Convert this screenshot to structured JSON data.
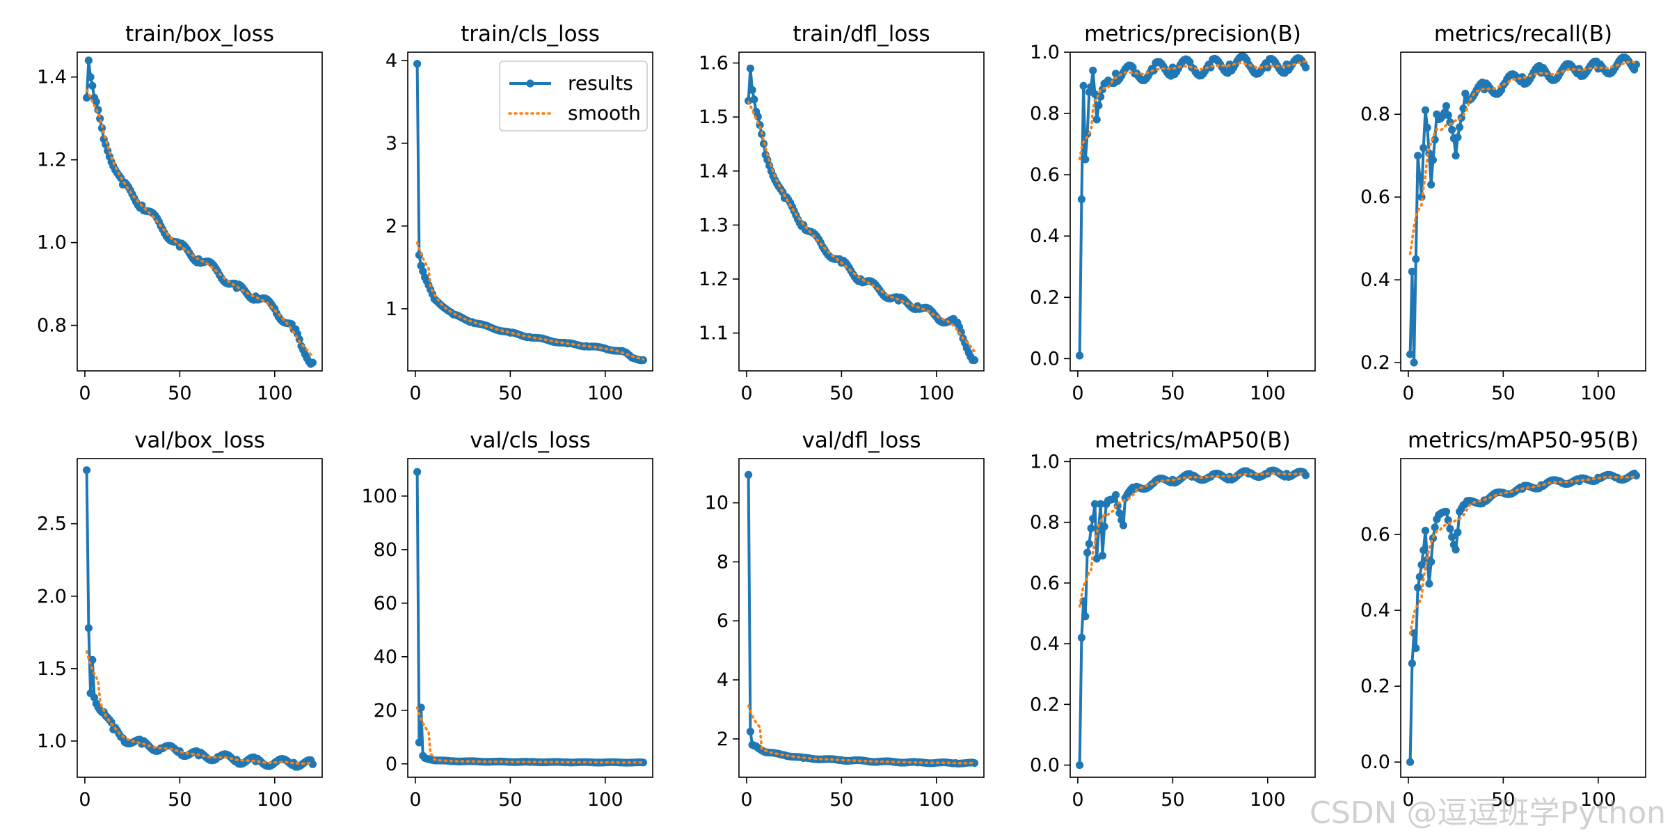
{
  "figure": {
    "colors": {
      "results": "#1f77b4",
      "smooth": "#ff7f0e",
      "axis": "#000000",
      "background": "#ffffff"
    },
    "legend": {
      "results_label": "results",
      "smooth_label": "smooth",
      "placement": "top-right",
      "panel_index": 1
    },
    "watermark": "CSDN @逗逗班学Python"
  },
  "chart_data": [
    {
      "type": "line",
      "title": "train/box_loss",
      "xlabel": "",
      "ylabel": "",
      "xlim": [
        -4,
        125
      ],
      "ylim": [
        0.69,
        1.46
      ],
      "xticks": [
        0,
        50,
        100
      ],
      "yticks": [
        0.8,
        1.0,
        1.2,
        1.4
      ],
      "legend": false,
      "grid": false,
      "anchors": [
        [
          1,
          1.35
        ],
        [
          2,
          1.44
        ],
        [
          3,
          1.4
        ],
        [
          5,
          1.35
        ],
        [
          10,
          1.25
        ],
        [
          20,
          1.14
        ],
        [
          30,
          1.09
        ],
        [
          40,
          1.04
        ],
        [
          50,
          0.99
        ],
        [
          60,
          0.96
        ],
        [
          70,
          0.93
        ],
        [
          80,
          0.89
        ],
        [
          90,
          0.87
        ],
        [
          100,
          0.84
        ],
        [
          110,
          0.79
        ],
        [
          114,
          0.75
        ],
        [
          120,
          0.71
        ]
      ],
      "noise": 0.012
    },
    {
      "type": "line",
      "title": "train/cls_loss",
      "xlabel": "",
      "ylabel": "",
      "xlim": [
        -4,
        125
      ],
      "ylim": [
        0.25,
        4.1
      ],
      "xticks": [
        0,
        50,
        100
      ],
      "yticks": [
        1,
        2,
        3,
        4
      ],
      "legend": true,
      "grid": false,
      "anchors": [
        [
          1,
          3.96
        ],
        [
          2,
          1.65
        ],
        [
          3,
          1.52
        ],
        [
          5,
          1.38
        ],
        [
          10,
          1.12
        ],
        [
          20,
          0.93
        ],
        [
          30,
          0.84
        ],
        [
          40,
          0.77
        ],
        [
          50,
          0.71
        ],
        [
          60,
          0.66
        ],
        [
          70,
          0.62
        ],
        [
          80,
          0.58
        ],
        [
          90,
          0.55
        ],
        [
          100,
          0.52
        ],
        [
          110,
          0.48
        ],
        [
          114,
          0.41
        ],
        [
          120,
          0.38
        ]
      ],
      "noise": 0.01
    },
    {
      "type": "line",
      "title": "train/dfl_loss",
      "xlabel": "",
      "ylabel": "",
      "xlim": [
        -4,
        125
      ],
      "ylim": [
        1.03,
        1.62
      ],
      "xticks": [
        0,
        50,
        100
      ],
      "yticks": [
        1.1,
        1.2,
        1.3,
        1.4,
        1.5,
        1.6
      ],
      "legend": false,
      "grid": false,
      "anchors": [
        [
          1,
          1.53
        ],
        [
          2,
          1.59
        ],
        [
          3,
          1.55
        ],
        [
          5,
          1.51
        ],
        [
          10,
          1.43
        ],
        [
          20,
          1.35
        ],
        [
          30,
          1.3
        ],
        [
          40,
          1.26
        ],
        [
          50,
          1.23
        ],
        [
          60,
          1.2
        ],
        [
          70,
          1.18
        ],
        [
          80,
          1.16
        ],
        [
          90,
          1.15
        ],
        [
          100,
          1.13
        ],
        [
          110,
          1.12
        ],
        [
          114,
          1.09
        ],
        [
          120,
          1.05
        ]
      ],
      "noise": 0.008
    },
    {
      "type": "line",
      "title": "metrics/precision(B)",
      "xlabel": "",
      "ylabel": "",
      "xlim": [
        -4,
        125
      ],
      "ylim": [
        -0.04,
        1.0
      ],
      "xticks": [
        0,
        50,
        100
      ],
      "yticks": [
        0.0,
        0.2,
        0.4,
        0.6,
        0.8,
        1.0
      ],
      "legend": false,
      "grid": false,
      "anchors": [
        [
          1,
          0.01
        ],
        [
          2,
          0.52
        ],
        [
          3,
          0.89
        ],
        [
          4,
          0.65
        ],
        [
          6,
          0.87
        ],
        [
          8,
          0.94
        ],
        [
          10,
          0.78
        ],
        [
          15,
          0.9
        ],
        [
          20,
          0.93
        ],
        [
          30,
          0.93
        ],
        [
          40,
          0.94
        ],
        [
          50,
          0.95
        ],
        [
          60,
          0.95
        ],
        [
          70,
          0.95
        ],
        [
          80,
          0.96
        ],
        [
          90,
          0.96
        ],
        [
          100,
          0.95
        ],
        [
          110,
          0.96
        ],
        [
          120,
          0.95
        ]
      ],
      "noise": 0.03
    },
    {
      "type": "line",
      "title": "metrics/recall(B)",
      "xlabel": "",
      "ylabel": "",
      "xlim": [
        -4,
        125
      ],
      "ylim": [
        0.18,
        0.95
      ],
      "xticks": [
        0,
        50,
        100
      ],
      "yticks": [
        0.2,
        0.4,
        0.6,
        0.8
      ],
      "legend": false,
      "grid": false,
      "anchors": [
        [
          1,
          0.22
        ],
        [
          2,
          0.42
        ],
        [
          3,
          0.2
        ],
        [
          4,
          0.45
        ],
        [
          5,
          0.7
        ],
        [
          7,
          0.6
        ],
        [
          9,
          0.81
        ],
        [
          12,
          0.63
        ],
        [
          15,
          0.8
        ],
        [
          20,
          0.82
        ],
        [
          25,
          0.7
        ],
        [
          30,
          0.85
        ],
        [
          40,
          0.86
        ],
        [
          50,
          0.87
        ],
        [
          60,
          0.89
        ],
        [
          70,
          0.9
        ],
        [
          80,
          0.9
        ],
        [
          90,
          0.91
        ],
        [
          100,
          0.91
        ],
        [
          110,
          0.92
        ],
        [
          120,
          0.92
        ]
      ],
      "noise": 0.02
    },
    {
      "type": "line",
      "title": "val/box_loss",
      "xlabel": "",
      "ylabel": "",
      "xlim": [
        -4,
        125
      ],
      "ylim": [
        0.75,
        2.95
      ],
      "xticks": [
        0,
        50,
        100
      ],
      "yticks": [
        1.0,
        1.5,
        2.0,
        2.5
      ],
      "legend": false,
      "grid": false,
      "anchors": [
        [
          1,
          2.87
        ],
        [
          2,
          1.78
        ],
        [
          3,
          1.33
        ],
        [
          4,
          1.56
        ],
        [
          5,
          1.3
        ],
        [
          10,
          1.2
        ],
        [
          15,
          1.08
        ],
        [
          20,
          1.02
        ],
        [
          30,
          0.98
        ],
        [
          40,
          0.95
        ],
        [
          50,
          0.93
        ],
        [
          60,
          0.9
        ],
        [
          70,
          0.89
        ],
        [
          80,
          0.87
        ],
        [
          90,
          0.86
        ],
        [
          100,
          0.85
        ],
        [
          110,
          0.85
        ],
        [
          120,
          0.84
        ]
      ],
      "noise": 0.03
    },
    {
      "type": "line",
      "title": "val/cls_loss",
      "xlabel": "",
      "ylabel": "",
      "xlim": [
        -4,
        125
      ],
      "ylim": [
        -5,
        114
      ],
      "xticks": [
        0,
        50,
        100
      ],
      "yticks": [
        0,
        20,
        40,
        60,
        80,
        100
      ],
      "legend": false,
      "grid": false,
      "anchors": [
        [
          1,
          109
        ],
        [
          2,
          8
        ],
        [
          3,
          21
        ],
        [
          4,
          3
        ],
        [
          5,
          2.2
        ],
        [
          10,
          1.3
        ],
        [
          20,
          1.0
        ],
        [
          40,
          0.8
        ],
        [
          60,
          0.7
        ],
        [
          80,
          0.6
        ],
        [
          100,
          0.55
        ],
        [
          120,
          0.5
        ]
      ],
      "noise": 0.1
    },
    {
      "type": "line",
      "title": "val/dfl_loss",
      "xlabel": "",
      "ylabel": "",
      "xlim": [
        -4,
        125
      ],
      "ylim": [
        0.7,
        11.5
      ],
      "xticks": [
        0,
        50,
        100
      ],
      "yticks": [
        2,
        4,
        6,
        8,
        10
      ],
      "legend": false,
      "grid": false,
      "anchors": [
        [
          1,
          10.95
        ],
        [
          2,
          2.25
        ],
        [
          3,
          1.8
        ],
        [
          5,
          1.75
        ],
        [
          10,
          1.55
        ],
        [
          20,
          1.45
        ],
        [
          30,
          1.35
        ],
        [
          50,
          1.28
        ],
        [
          70,
          1.23
        ],
        [
          90,
          1.2
        ],
        [
          110,
          1.18
        ],
        [
          120,
          1.18
        ]
      ],
      "noise": 0.02
    },
    {
      "type": "line",
      "title": "metrics/mAP50(B)",
      "xlabel": "",
      "ylabel": "",
      "xlim": [
        -4,
        125
      ],
      "ylim": [
        -0.04,
        1.01
      ],
      "xticks": [
        0,
        50,
        100
      ],
      "yticks": [
        0.0,
        0.2,
        0.4,
        0.6,
        0.8,
        1.0
      ],
      "legend": false,
      "grid": false,
      "anchors": [
        [
          1,
          0.0
        ],
        [
          2,
          0.42
        ],
        [
          3,
          0.54
        ],
        [
          4,
          0.49
        ],
        [
          5,
          0.7
        ],
        [
          7,
          0.78
        ],
        [
          9,
          0.86
        ],
        [
          10,
          0.68
        ],
        [
          12,
          0.86
        ],
        [
          13,
          0.69
        ],
        [
          15,
          0.86
        ],
        [
          20,
          0.89
        ],
        [
          24,
          0.79
        ],
        [
          25,
          0.88
        ],
        [
          30,
          0.91
        ],
        [
          40,
          0.93
        ],
        [
          50,
          0.94
        ],
        [
          60,
          0.95
        ],
        [
          70,
          0.95
        ],
        [
          80,
          0.95
        ],
        [
          90,
          0.96
        ],
        [
          100,
          0.96
        ],
        [
          110,
          0.96
        ],
        [
          120,
          0.955
        ]
      ],
      "noise": 0.012
    },
    {
      "type": "line",
      "title": "metrics/mAP50-95(B)",
      "xlabel": "",
      "ylabel": "",
      "xlim": [
        -4,
        125
      ],
      "ylim": [
        -0.04,
        0.8
      ],
      "xticks": [
        0,
        50,
        100
      ],
      "yticks": [
        0.0,
        0.2,
        0.4,
        0.6
      ],
      "legend": false,
      "grid": false,
      "anchors": [
        [
          1,
          0.0
        ],
        [
          2,
          0.26
        ],
        [
          3,
          0.34
        ],
        [
          4,
          0.3
        ],
        [
          5,
          0.46
        ],
        [
          7,
          0.52
        ],
        [
          9,
          0.61
        ],
        [
          11,
          0.47
        ],
        [
          13,
          0.59
        ],
        [
          15,
          0.64
        ],
        [
          20,
          0.66
        ],
        [
          25,
          0.56
        ],
        [
          27,
          0.66
        ],
        [
          30,
          0.68
        ],
        [
          40,
          0.69
        ],
        [
          50,
          0.71
        ],
        [
          60,
          0.72
        ],
        [
          70,
          0.73
        ],
        [
          80,
          0.74
        ],
        [
          90,
          0.74
        ],
        [
          100,
          0.75
        ],
        [
          110,
          0.75
        ],
        [
          120,
          0.755
        ]
      ],
      "noise": 0.008
    }
  ]
}
